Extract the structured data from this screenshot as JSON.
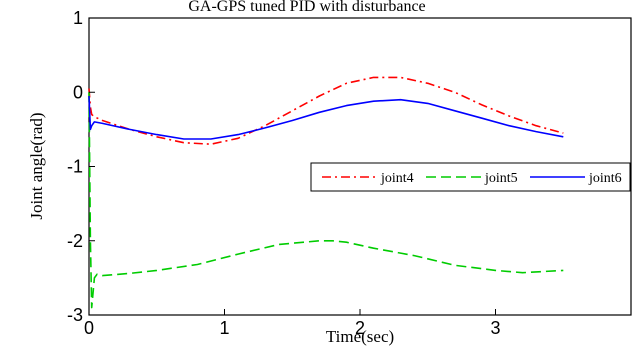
{
  "chart_data": {
    "type": "line",
    "title": "GA-GPS tuned PID with disturbance",
    "xlabel": "Time(sec)",
    "ylabel": "Joint angle(rad)",
    "xlim": [
      0,
      4
    ],
    "ylim": [
      -3,
      1
    ],
    "x_ticks": [
      "0",
      "1",
      "2",
      "3"
    ],
    "y_ticks": [
      "1",
      "0",
      "-1",
      "-2",
      "-3"
    ],
    "grid": false,
    "legend_position": "right",
    "series": [
      {
        "name": "joint4",
        "color": "#ff0000",
        "dash": "dash-dot",
        "x": [
          0,
          0.01,
          0.02,
          0.04,
          0.1,
          0.3,
          0.5,
          0.7,
          0.9,
          1.1,
          1.3,
          1.5,
          1.7,
          1.9,
          2.1,
          2.3,
          2.5,
          2.7,
          2.9,
          3.1,
          3.3,
          3.5
        ],
        "y": [
          0.05,
          -0.2,
          -0.3,
          -0.33,
          -0.38,
          -0.5,
          -0.6,
          -0.68,
          -0.7,
          -0.62,
          -0.45,
          -0.25,
          -0.05,
          0.12,
          0.2,
          0.2,
          0.12,
          0.0,
          -0.17,
          -0.32,
          -0.45,
          -0.55
        ]
      },
      {
        "name": "joint5",
        "color": "#00cc00",
        "dash": "dashed",
        "x": [
          0,
          0.01,
          0.02,
          0.04,
          0.06,
          0.1,
          0.3,
          0.5,
          0.8,
          1.1,
          1.4,
          1.7,
          1.8,
          1.9,
          2.1,
          2.4,
          2.7,
          3.0,
          3.2,
          3.5
        ],
        "y": [
          0.0,
          -2.0,
          -2.9,
          -2.5,
          -2.45,
          -2.47,
          -2.44,
          -2.4,
          -2.32,
          -2.18,
          -2.05,
          -2.0,
          -2.0,
          -2.02,
          -2.1,
          -2.2,
          -2.33,
          -2.4,
          -2.43,
          -2.4
        ]
      },
      {
        "name": "joint6",
        "color": "#0000ff",
        "dash": "solid",
        "x": [
          0,
          0.01,
          0.02,
          0.04,
          0.1,
          0.3,
          0.5,
          0.7,
          0.9,
          1.1,
          1.3,
          1.5,
          1.7,
          1.9,
          2.1,
          2.3,
          2.5,
          2.7,
          2.9,
          3.1,
          3.3,
          3.5
        ],
        "y": [
          -0.05,
          -0.5,
          -0.45,
          -0.4,
          -0.42,
          -0.5,
          -0.57,
          -0.63,
          -0.63,
          -0.57,
          -0.48,
          -0.38,
          -0.27,
          -0.18,
          -0.12,
          -0.1,
          -0.15,
          -0.25,
          -0.35,
          -0.45,
          -0.53,
          -0.6
        ]
      }
    ]
  }
}
